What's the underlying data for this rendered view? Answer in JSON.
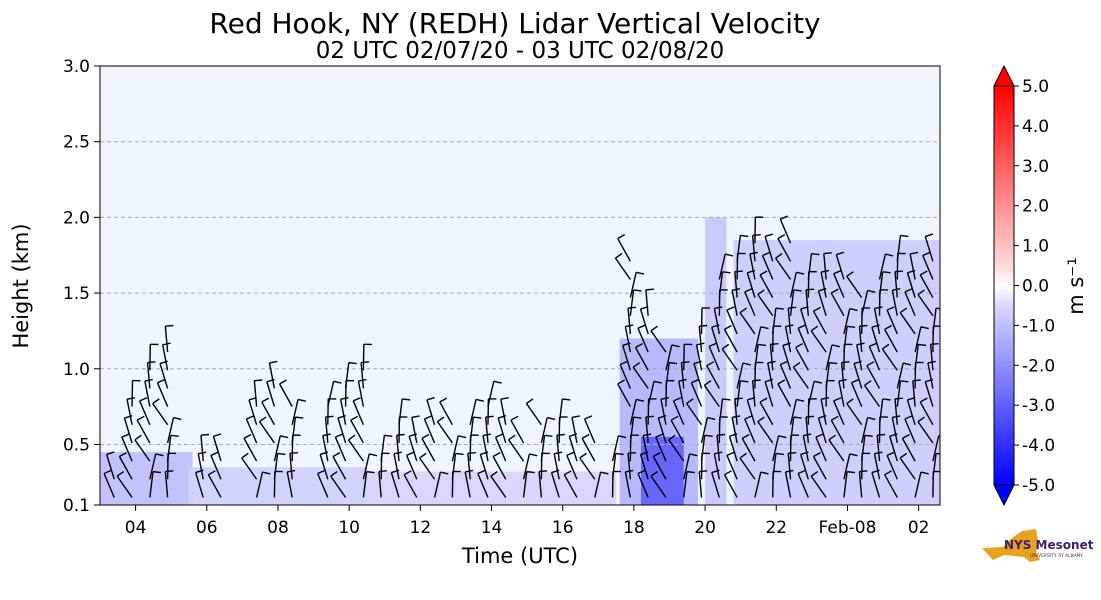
{
  "chart_data": {
    "type": "heatmap",
    "title": "Red Hook, NY (REDH) Lidar Vertical Velocity",
    "subtitle": "02 UTC 02/07/20 - 03 UTC 02/08/20",
    "xlabel": "Time (UTC)",
    "ylabel": "Height (km)",
    "x_range_utc_hours": [
      3.0,
      26.6
    ],
    "ylim": [
      0.1,
      3.0
    ],
    "x_ticks": [
      {
        "hour": 4,
        "label": "04"
      },
      {
        "hour": 6,
        "label": "06"
      },
      {
        "hour": 8,
        "label": "08"
      },
      {
        "hour": 10,
        "label": "10"
      },
      {
        "hour": 12,
        "label": "12"
      },
      {
        "hour": 14,
        "label": "14"
      },
      {
        "hour": 16,
        "label": "16"
      },
      {
        "hour": 18,
        "label": "18"
      },
      {
        "hour": 20,
        "label": "20"
      },
      {
        "hour": 22,
        "label": "22"
      },
      {
        "hour": 24,
        "label": "Feb-08"
      },
      {
        "hour": 26,
        "label": "02"
      }
    ],
    "y_ticks": [
      {
        "value": 0.1,
        "label": "0.1"
      },
      {
        "value": 0.5,
        "label": "0.5"
      },
      {
        "value": 1.0,
        "label": "1.0"
      },
      {
        "value": 1.5,
        "label": "1.5"
      },
      {
        "value": 2.0,
        "label": "2.0"
      },
      {
        "value": 2.5,
        "label": "2.5"
      },
      {
        "value": 3.0,
        "label": "3.0"
      }
    ],
    "grid": "horizontal-dashed",
    "colorbar": {
      "label": "m s⁻¹",
      "range": [
        -5.0,
        5.0
      ],
      "ticks": [
        "5.0",
        "4.0",
        "3.0",
        "2.0",
        "1.0",
        "0.0",
        "-1.0",
        "-2.0",
        "-3.0",
        "-4.0",
        "-5.0"
      ],
      "colormap": "bwr",
      "extend": "both"
    },
    "downdraft_regions": [
      {
        "t0": 3.0,
        "t1": 5.6,
        "h0": 0.1,
        "h1": 0.45,
        "w": -1.0
      },
      {
        "t0": 5.5,
        "t1": 10.5,
        "h0": 0.1,
        "h1": 0.35,
        "w": -0.6
      },
      {
        "t0": 10.5,
        "t1": 17.5,
        "h0": 0.1,
        "h1": 0.32,
        "w": -0.5
      },
      {
        "t0": 17.6,
        "t1": 19.8,
        "h0": 0.1,
        "h1": 1.2,
        "w": -1.2
      },
      {
        "t0": 18.2,
        "t1": 19.4,
        "h0": 0.1,
        "h1": 0.55,
        "w": -3.0
      },
      {
        "t0": 20.0,
        "t1": 20.6,
        "h0": 0.1,
        "h1": 2.0,
        "w": -0.8
      },
      {
        "t0": 20.8,
        "t1": 26.6,
        "h0": 0.1,
        "h1": 1.85,
        "w": -0.7
      }
    ],
    "wind_barb_times_utc": [
      3.4,
      3.9,
      4.4,
      4.9,
      5.9,
      6.4,
      7.4,
      7.9,
      8.4,
      9.4,
      9.9,
      10.4,
      10.9,
      11.4,
      11.9,
      12.4,
      12.9,
      13.4,
      13.9,
      14.4,
      14.9,
      15.4,
      15.9,
      16.4,
      16.9,
      17.4,
      17.9,
      18.4,
      18.9,
      19.4,
      19.9,
      20.4,
      20.9,
      21.4,
      21.9,
      22.4,
      22.9,
      23.4,
      23.9,
      24.4,
      24.9,
      25.4,
      25.9,
      26.4
    ],
    "wind_barb_top_km": [
      0.35,
      0.8,
      1.0,
      1.2,
      0.45,
      0.5,
      0.85,
      0.9,
      0.85,
      0.8,
      0.9,
      1.0,
      0.5,
      0.65,
      0.6,
      0.65,
      0.7,
      0.65,
      0.75,
      0.7,
      0.6,
      0.65,
      0.7,
      0.55,
      0.6,
      0.5,
      1.8,
      1.4,
      1.2,
      1.05,
      1.25,
      1.65,
      1.75,
      1.9,
      1.75,
      1.85,
      1.6,
      1.6,
      1.7,
      1.55,
      1.6,
      1.75,
      1.7,
      1.75
    ]
  },
  "logo": {
    "text": "NYS Mesonet",
    "subtext": "UNIVERSITY AT ALBANY",
    "state_color": "#e8a21b",
    "mesonet_color": "#3d1f6e"
  },
  "colors": {
    "background_field": "#eef6ff",
    "grid": "#aaaaaa"
  }
}
